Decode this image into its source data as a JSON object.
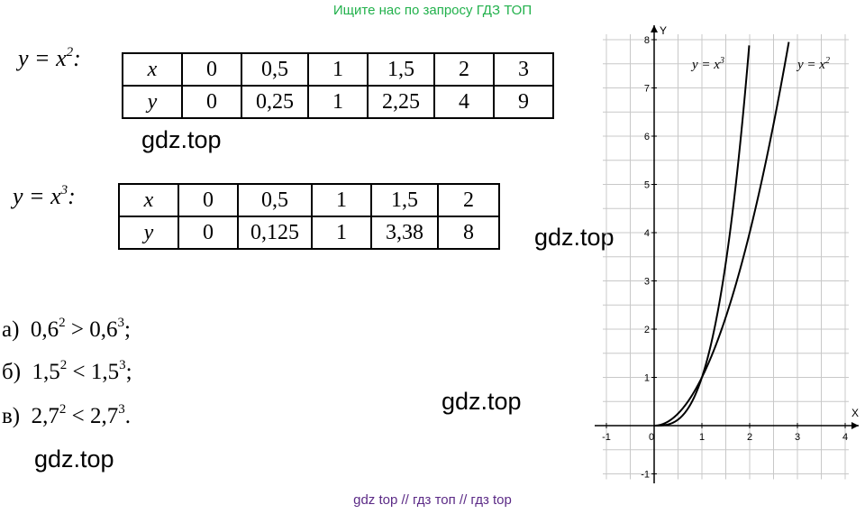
{
  "banner": "Ищите нас по запросу ГДЗ ТОП",
  "footer": "gdz top  //  гдз топ  //  гдз top",
  "watermark": "gdz.top",
  "table1": {
    "func_label": {
      "y": "y",
      "eq": " = x",
      "exp": "2",
      "colon": ":"
    },
    "rows": [
      [
        "x",
        "0",
        "0,5",
        "1",
        "1,5",
        "2",
        "3"
      ],
      [
        "y",
        "0",
        "0,25",
        "1",
        "2,25",
        "4",
        "9"
      ]
    ]
  },
  "table2": {
    "func_label": {
      "y": "y",
      "eq": " = x",
      "exp": "3",
      "colon": ":"
    },
    "rows": [
      [
        "x",
        "0",
        "0,5",
        "1",
        "1,5",
        "2"
      ],
      [
        "y",
        "0",
        "0,125",
        "1",
        "3,38",
        "8"
      ]
    ]
  },
  "inequalities": [
    {
      "prefix": "а)",
      "base1": "0,6",
      "exp1": "2",
      "op": " > ",
      "base2": "0,6",
      "exp2": "3",
      "end": ";"
    },
    {
      "prefix": "б)",
      "base1": "1,5",
      "exp1": "2",
      "op": " < ",
      "base2": "1,5",
      "exp2": "3",
      "end": ";"
    },
    {
      "prefix": "в)",
      "base1": "2,7",
      "exp1": "2",
      "op": " < ",
      "base2": "2,7",
      "exp2": "3",
      "end": "."
    }
  ],
  "chart_data": {
    "type": "line",
    "xlabel": "X",
    "ylabel": "Y",
    "xlim": [
      -1,
      4
    ],
    "ylim": [
      -1,
      8
    ],
    "x_ticks": [
      "-1",
      "0",
      "1",
      "2",
      "3",
      "4"
    ],
    "y_ticks": [
      "-1",
      "1",
      "2",
      "3",
      "4",
      "5",
      "6",
      "7",
      "8"
    ],
    "grid": true,
    "series": [
      {
        "name": "y = x³",
        "label_y": "y",
        "label_eq": " = x",
        "label_exp": "3",
        "function": "x^3",
        "x": [
          0,
          0.5,
          1,
          1.5,
          2
        ],
        "y": [
          0,
          0.125,
          1,
          3.375,
          8
        ]
      },
      {
        "name": "y = x²",
        "label_y": "y",
        "label_eq": " = x",
        "label_exp": "2",
        "function": "x^2",
        "x": [
          0,
          0.5,
          1,
          1.5,
          2,
          2.5,
          2.83
        ],
        "y": [
          0,
          0.25,
          1,
          2.25,
          4,
          6.25,
          8
        ]
      }
    ]
  }
}
